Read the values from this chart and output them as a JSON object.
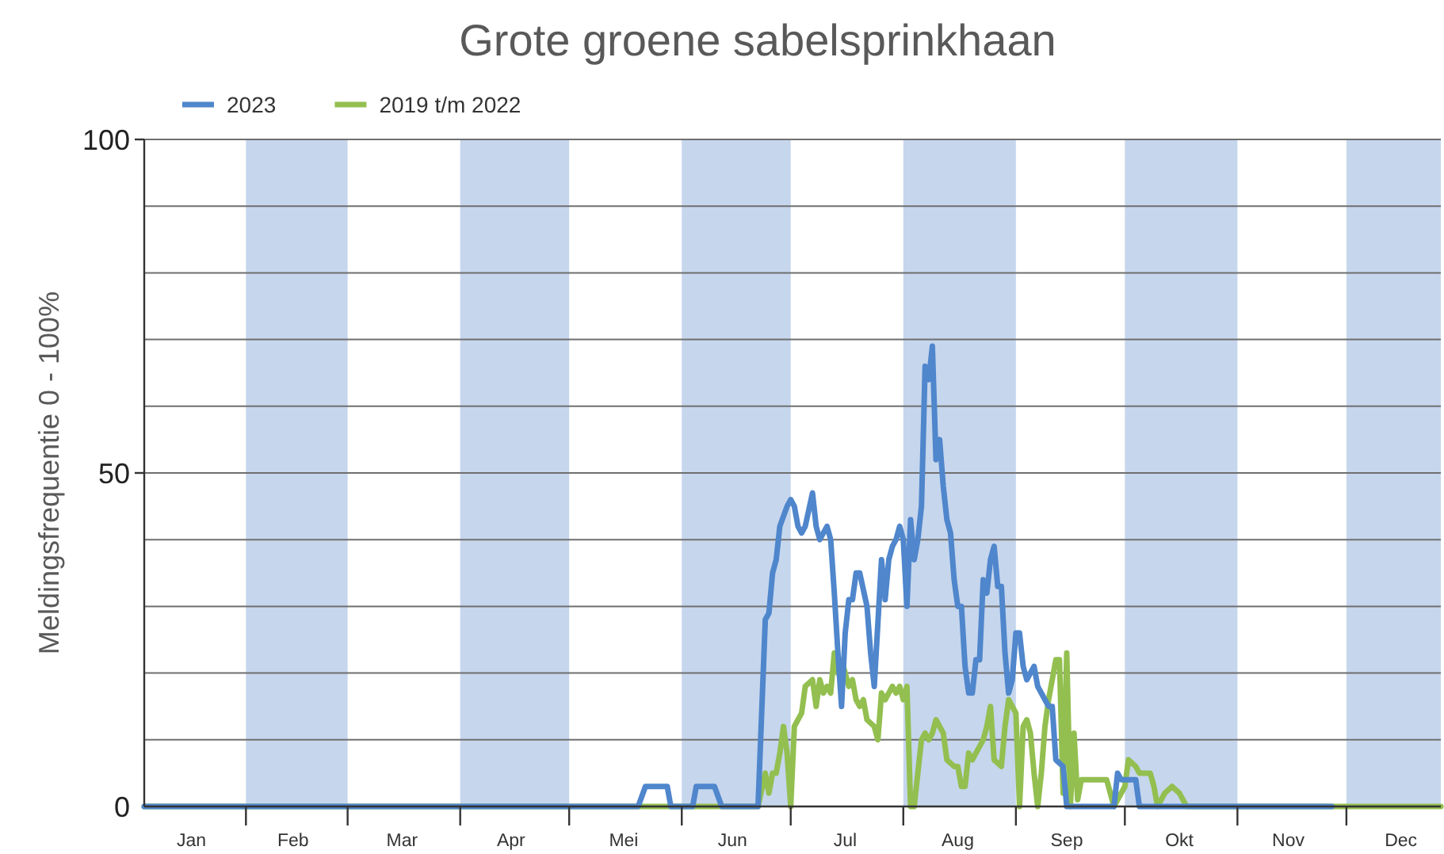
{
  "chart_data": {
    "type": "line",
    "title": "Grote groene sabelsprinkhaan",
    "ylabel": "Meldingsfrequentie 0 - 100%",
    "xlim": [
      "--01-04",
      "--12-27"
    ],
    "xticks": [
      {
        "value": "--01-17",
        "label": "Jan"
      },
      {
        "value": "--02-01",
        "label": null
      },
      {
        "value": "--02-14",
        "label": "Feb"
      },
      {
        "value": "--03-01",
        "label": null
      },
      {
        "value": "--03-16",
        "label": "Mar"
      },
      {
        "value": "--04-01",
        "label": null
      },
      {
        "value": "--04-15",
        "label": "Apr"
      },
      {
        "value": "--05-01",
        "label": null
      },
      {
        "value": "--05-16",
        "label": "Mei"
      },
      {
        "value": "--06-01",
        "label": null
      },
      {
        "value": "--06-15",
        "label": "Jun"
      },
      {
        "value": "--07-01",
        "label": null
      },
      {
        "value": "--07-16",
        "label": "Jul"
      },
      {
        "value": "--08-01",
        "label": null
      },
      {
        "value": "--08-16",
        "label": "Aug"
      },
      {
        "value": "--09-01",
        "label": null
      },
      {
        "value": "--09-15",
        "label": "Sep"
      },
      {
        "value": "--10-01",
        "label": null
      },
      {
        "value": "--10-16",
        "label": "Okt"
      },
      {
        "value": "--11-01",
        "label": null
      },
      {
        "value": "--11-15",
        "label": "Nov"
      },
      {
        "value": "--12-01",
        "label": null
      },
      {
        "value": "--12-16",
        "label": "Dec"
      }
    ],
    "ylim": [
      0,
      100
    ],
    "yticks": [
      0,
      {
        "value": 10,
        "label": null
      },
      {
        "value": 20,
        "label": null
      },
      {
        "value": 30,
        "label": null
      },
      {
        "value": 40,
        "label": null
      },
      50,
      {
        "value": 60,
        "label": null
      },
      {
        "value": 70,
        "label": null
      },
      {
        "value": 80,
        "label": null
      },
      {
        "value": 90,
        "label": null
      },
      100
    ],
    "grid": "y",
    "legend": "top left",
    "line_style": "solid",
    "bands": [
      {
        "axis": "x",
        "from": "--02-01",
        "to": "--03-01",
        "color": "#c6d6ed"
      },
      {
        "axis": "x",
        "from": "--04-01",
        "to": "--05-01",
        "color": "#c6d6ed"
      },
      {
        "axis": "x",
        "from": "--06-01",
        "to": "--07-01",
        "color": "#c6d6ed"
      },
      {
        "axis": "x",
        "from": "--08-01",
        "to": "--09-01",
        "color": "#c6d6ed"
      },
      {
        "axis": "x",
        "from": "--10-01",
        "to": "--11-01",
        "color": "#c6d6ed"
      },
      {
        "axis": "x",
        "from": "--12-01",
        "to": "--12-27",
        "color": "#c6d6ed"
      }
    ],
    "series": [
      {
        "name": "2023",
        "color": "#4f86cc",
        "x": [
          "--01-04",
          "--05-20",
          "--05-22",
          "--05-28",
          "--05-29",
          "--06-04",
          "--06-05",
          "--06-10",
          "--06-12",
          "--06-22",
          "--06-24",
          "--06-25",
          "--06-26",
          "--06-27",
          "--06-28",
          "--06-30",
          "--07-01",
          "--07-02",
          "--07-03",
          "--07-04",
          "--07-05",
          "--07-07",
          "--07-08",
          "--07-09",
          "--07-11",
          "--07-12",
          "--07-13",
          "--07-14",
          "--07-15",
          "--07-16",
          "--07-17",
          "--07-18",
          "--07-19",
          "--07-20",
          "--07-22",
          "--07-23",
          "--07-24",
          "--07-26",
          "--07-27",
          "--07-28",
          "--07-29",
          "--07-30",
          "--07-31",
          "--08-01",
          "--08-02",
          "--08-03",
          "--08-04",
          "--08-05",
          "--08-06",
          "--08-07",
          "--08-08",
          "--08-09",
          "--08-10",
          "--08-11",
          "--08-12",
          "--08-13",
          "--08-14",
          "--08-15",
          "--08-16",
          "--08-17",
          "--08-18",
          "--08-19",
          "--08-20",
          "--08-21",
          "--08-22",
          "--08-23",
          "--08-24",
          "--08-25",
          "--08-26",
          "--08-27",
          "--08-28",
          "--08-29",
          "--08-30",
          "--08-31",
          "--09-01",
          "--09-02",
          "--09-03",
          "--09-04",
          "--09-06",
          "--09-07",
          "--09-09",
          "--09-10",
          "--09-11",
          "--09-12",
          "--09-14",
          "--09-15",
          "--09-28",
          "--09-29",
          "--09-30",
          "--10-04",
          "--10-05",
          "--11-27"
        ],
        "values": [
          0,
          0,
          3,
          3,
          0,
          0,
          3,
          3,
          0,
          0,
          28,
          29,
          35,
          37,
          42,
          45,
          46,
          45,
          42,
          41,
          42,
          47,
          42,
          40,
          42,
          40,
          32,
          23,
          15,
          26,
          31,
          31,
          35,
          35,
          30,
          23,
          18,
          37,
          31,
          37,
          39,
          40,
          42,
          40,
          30,
          43,
          37,
          40,
          45,
          66,
          64,
          69,
          52,
          55,
          48,
          43,
          41,
          34,
          30,
          30,
          21,
          17,
          17,
          22,
          22,
          34,
          32,
          37,
          39,
          33,
          33,
          23,
          17,
          19,
          26,
          26,
          21,
          19,
          21,
          18,
          16,
          15,
          15,
          7,
          6,
          0,
          0,
          5,
          4,
          4,
          0,
          0
        ]
      },
      {
        "name": "2019 t/m 2022",
        "color": "#93bf50",
        "x": [
          "--01-04",
          "--06-22",
          "--06-24",
          "--06-25",
          "--06-26",
          "--06-27",
          "--06-28",
          "--06-29",
          "--06-30",
          "--07-01",
          "--07-02",
          "--07-03",
          "--07-04",
          "--07-05",
          "--07-07",
          "--07-08",
          "--07-09",
          "--07-10",
          "--07-11",
          "--07-12",
          "--07-13",
          "--07-14",
          "--07-15",
          "--07-17",
          "--07-18",
          "--07-19",
          "--07-20",
          "--07-21",
          "--07-22",
          "--07-24",
          "--07-25",
          "--07-26",
          "--07-27",
          "--07-28",
          "--07-29",
          "--07-30",
          "--07-31",
          "--08-01",
          "--08-02",
          "--08-03",
          "--08-04",
          "--08-05",
          "--08-06",
          "--08-07",
          "--08-08",
          "--08-09",
          "--08-10",
          "--08-11",
          "--08-12",
          "--08-13",
          "--08-15",
          "--08-16",
          "--08-17",
          "--08-18",
          "--08-19",
          "--08-20",
          "--08-21",
          "--08-23",
          "--08-24",
          "--08-25",
          "--08-26",
          "--08-28",
          "--08-29",
          "--08-30",
          "--09-01",
          "--09-02",
          "--09-03",
          "--09-04",
          "--09-05",
          "--09-06",
          "--09-07",
          "--09-08",
          "--09-09",
          "--09-10",
          "--09-11",
          "--09-12",
          "--09-13",
          "--09-14",
          "--09-15",
          "--09-16",
          "--09-17",
          "--09-18",
          "--09-19",
          "--09-20",
          "--09-22",
          "--09-24",
          "--09-26",
          "--09-28",
          "--10-01",
          "--10-02",
          "--10-04",
          "--10-05",
          "--10-08",
          "--10-09",
          "--10-10",
          "--10-12",
          "--10-14",
          "--10-16",
          "--10-18",
          "--12-27"
        ],
        "values": [
          0,
          0,
          5,
          2,
          5,
          5,
          8,
          12,
          8,
          0,
          12,
          13,
          14,
          18,
          19,
          15,
          19,
          17,
          18,
          17,
          23,
          20,
          22,
          18,
          19,
          16,
          15,
          16,
          13,
          12,
          10,
          17,
          16,
          17,
          18,
          17,
          18,
          16,
          18,
          0,
          0,
          5,
          10,
          11,
          10,
          11,
          13,
          12,
          11,
          7,
          6,
          6,
          3,
          3,
          8,
          7,
          8,
          10,
          12,
          15,
          7,
          6,
          12,
          16,
          14,
          0,
          12,
          13,
          11,
          5,
          0,
          5,
          12,
          16,
          19,
          22,
          22,
          2,
          23,
          0,
          11,
          1,
          4,
          4,
          4,
          4,
          4,
          0,
          3,
          7,
          6,
          5,
          5,
          3,
          0,
          2,
          3,
          2,
          0,
          0
        ]
      }
    ]
  }
}
